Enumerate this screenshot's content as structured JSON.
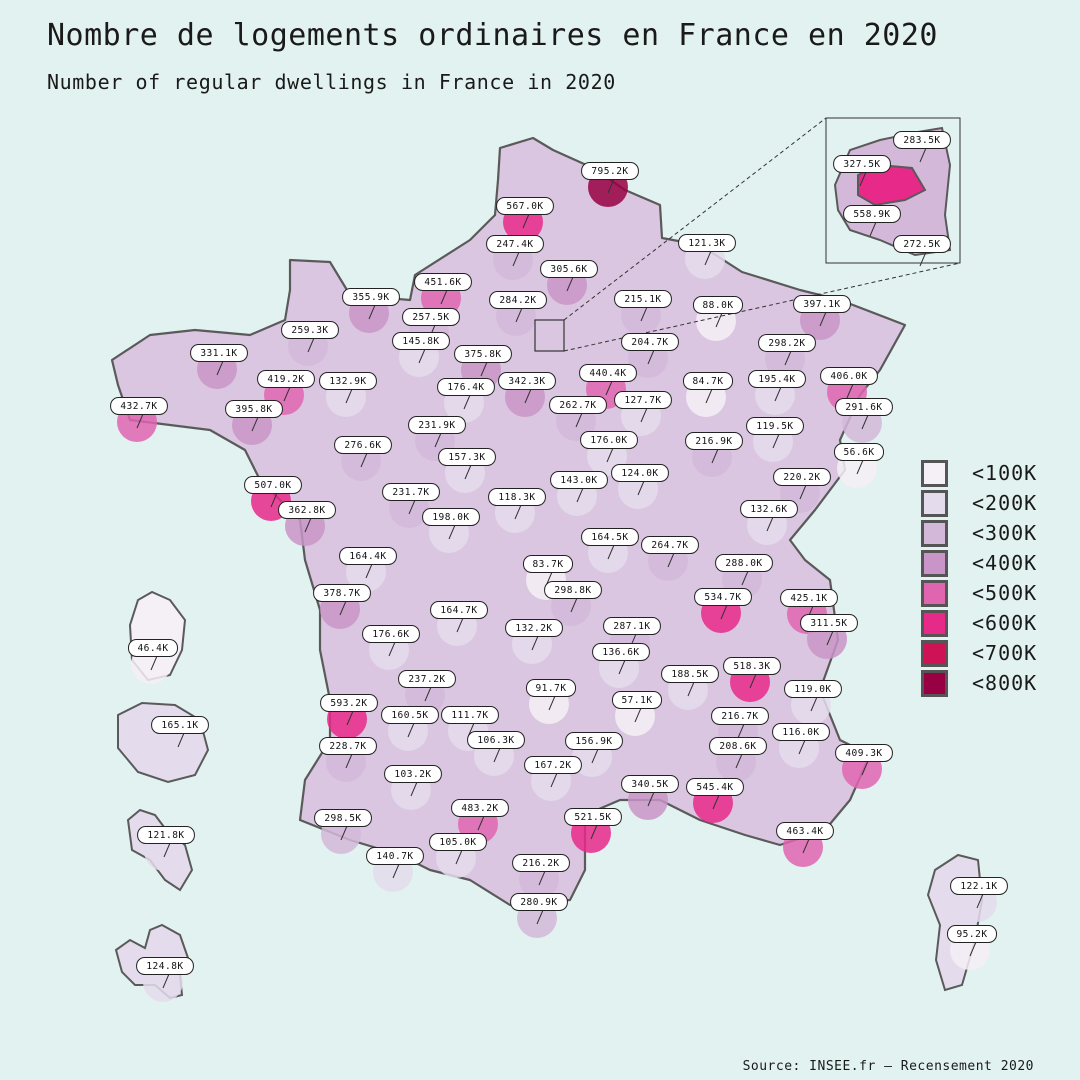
{
  "title": "Nombre de logements ordinaires en France en 2020",
  "subtitle": "Number of regular dwellings in France in 2020",
  "source": "Source: INSEE.fr — Recensement 2020",
  "map_style": {
    "background": "#e2f2f0",
    "border": "#5a5a5a"
  },
  "legend": [
    {
      "label": "<100K",
      "color": "#f4f0f6"
    },
    {
      "label": "<200K",
      "color": "#e4dcec"
    },
    {
      "label": "<300K",
      "color": "#d4b8d9"
    },
    {
      "label": "<400K",
      "color": "#c994c7"
    },
    {
      "label": "<500K",
      "color": "#df65b0"
    },
    {
      "label": "<600K",
      "color": "#e7298a"
    },
    {
      "label": "<700K",
      "color": "#ce1256"
    },
    {
      "label": "<800K",
      "color": "#980043"
    }
  ],
  "departments": [
    {
      "label": "795.2K",
      "value": 795.2
    },
    {
      "label": "567.0K",
      "value": 567.0
    },
    {
      "label": "247.4K",
      "value": 247.4
    },
    {
      "label": "121.3K",
      "value": 121.3
    },
    {
      "label": "305.6K",
      "value": 305.6
    },
    {
      "label": "451.6K",
      "value": 451.6
    },
    {
      "label": "355.9K",
      "value": 355.9
    },
    {
      "label": "284.2K",
      "value": 284.2
    },
    {
      "label": "215.1K",
      "value": 215.1
    },
    {
      "label": "88.0K",
      "value": 88.0
    },
    {
      "label": "397.1K",
      "value": 397.1
    },
    {
      "label": "259.3K",
      "value": 259.3
    },
    {
      "label": "257.5K",
      "value": 257.5
    },
    {
      "label": "145.8K",
      "value": 145.8
    },
    {
      "label": "375.8K",
      "value": 375.8
    },
    {
      "label": "204.7K",
      "value": 204.7
    },
    {
      "label": "298.2K",
      "value": 298.2
    },
    {
      "label": "331.1K",
      "value": 331.1
    },
    {
      "label": "419.2K",
      "value": 419.2
    },
    {
      "label": "132.9K",
      "value": 132.9
    },
    {
      "label": "176.4K",
      "value": 176.4
    },
    {
      "label": "342.3K",
      "value": 342.3
    },
    {
      "label": "440.4K",
      "value": 440.4
    },
    {
      "label": "84.7K",
      "value": 84.7
    },
    {
      "label": "195.4K",
      "value": 195.4
    },
    {
      "label": "406.0K",
      "value": 406.0
    },
    {
      "label": "432.7K",
      "value": 432.7
    },
    {
      "label": "395.8K",
      "value": 395.8
    },
    {
      "label": "127.7K",
      "value": 127.7
    },
    {
      "label": "262.7K",
      "value": 262.7
    },
    {
      "label": "291.6K",
      "value": 291.6
    },
    {
      "label": "231.9K",
      "value": 231.9
    },
    {
      "label": "119.5K",
      "value": 119.5
    },
    {
      "label": "276.6K",
      "value": 276.6
    },
    {
      "label": "176.0K",
      "value": 176.0
    },
    {
      "label": "216.9K",
      "value": 216.9
    },
    {
      "label": "157.3K",
      "value": 157.3
    },
    {
      "label": "56.6K",
      "value": 56.6
    },
    {
      "label": "124.0K",
      "value": 124.0
    },
    {
      "label": "220.2K",
      "value": 220.2
    },
    {
      "label": "507.0K",
      "value": 507.0
    },
    {
      "label": "231.7K",
      "value": 231.7
    },
    {
      "label": "143.0K",
      "value": 143.0
    },
    {
      "label": "118.3K",
      "value": 118.3
    },
    {
      "label": "362.8K",
      "value": 362.8
    },
    {
      "label": "198.0K",
      "value": 198.0
    },
    {
      "label": "132.6K",
      "value": 132.6
    },
    {
      "label": "164.5K",
      "value": 164.5
    },
    {
      "label": "264.7K",
      "value": 264.7
    },
    {
      "label": "164.4K",
      "value": 164.4
    },
    {
      "label": "83.7K",
      "value": 83.7
    },
    {
      "label": "288.0K",
      "value": 288.0
    },
    {
      "label": "298.8K",
      "value": 298.8
    },
    {
      "label": "378.7K",
      "value": 378.7
    },
    {
      "label": "534.7K",
      "value": 534.7
    },
    {
      "label": "425.1K",
      "value": 425.1
    },
    {
      "label": "164.7K",
      "value": 164.7
    },
    {
      "label": "287.1K",
      "value": 287.1
    },
    {
      "label": "311.5K",
      "value": 311.5
    },
    {
      "label": "176.6K",
      "value": 176.6
    },
    {
      "label": "132.2K",
      "value": 132.2
    },
    {
      "label": "136.6K",
      "value": 136.6
    },
    {
      "label": "518.3K",
      "value": 518.3
    },
    {
      "label": "237.2K",
      "value": 237.2
    },
    {
      "label": "188.5K",
      "value": 188.5
    },
    {
      "label": "91.7K",
      "value": 91.7
    },
    {
      "label": "119.0K",
      "value": 119.0
    },
    {
      "label": "593.2K",
      "value": 593.2
    },
    {
      "label": "57.1K",
      "value": 57.1
    },
    {
      "label": "160.5K",
      "value": 160.5
    },
    {
      "label": "111.7K",
      "value": 111.7
    },
    {
      "label": "216.7K",
      "value": 216.7
    },
    {
      "label": "116.0K",
      "value": 116.0
    },
    {
      "label": "228.7K",
      "value": 228.7
    },
    {
      "label": "106.3K",
      "value": 106.3
    },
    {
      "label": "156.9K",
      "value": 156.9
    },
    {
      "label": "208.6K",
      "value": 208.6
    },
    {
      "label": "409.3K",
      "value": 409.3
    },
    {
      "label": "103.2K",
      "value": 103.2
    },
    {
      "label": "167.2K",
      "value": 167.2
    },
    {
      "label": "340.5K",
      "value": 340.5
    },
    {
      "label": "545.4K",
      "value": 545.4
    },
    {
      "label": "483.2K",
      "value": 483.2
    },
    {
      "label": "521.5K",
      "value": 521.5
    },
    {
      "label": "463.4K",
      "value": 463.4
    },
    {
      "label": "298.5K",
      "value": 298.5
    },
    {
      "label": "105.0K",
      "value": 105.0
    },
    {
      "label": "140.7K",
      "value": 140.7
    },
    {
      "label": "216.2K",
      "value": 216.2
    },
    {
      "label": "280.9K",
      "value": 280.9
    },
    {
      "label": "122.1K",
      "value": 122.1
    },
    {
      "label": "95.2K",
      "value": 95.2
    },
    {
      "label": "46.4K",
      "value": 46.4
    },
    {
      "label": "165.1K",
      "value": 165.1
    },
    {
      "label": "121.8K",
      "value": 121.8
    },
    {
      "label": "124.8K",
      "value": 124.8
    }
  ],
  "paris_inset": [
    {
      "label": "283.5K",
      "value": 283.5
    },
    {
      "label": "327.5K",
      "value": 327.5
    },
    {
      "label": "558.9K",
      "value": 558.9
    },
    {
      "label": "272.5K",
      "value": 272.5
    }
  ]
}
